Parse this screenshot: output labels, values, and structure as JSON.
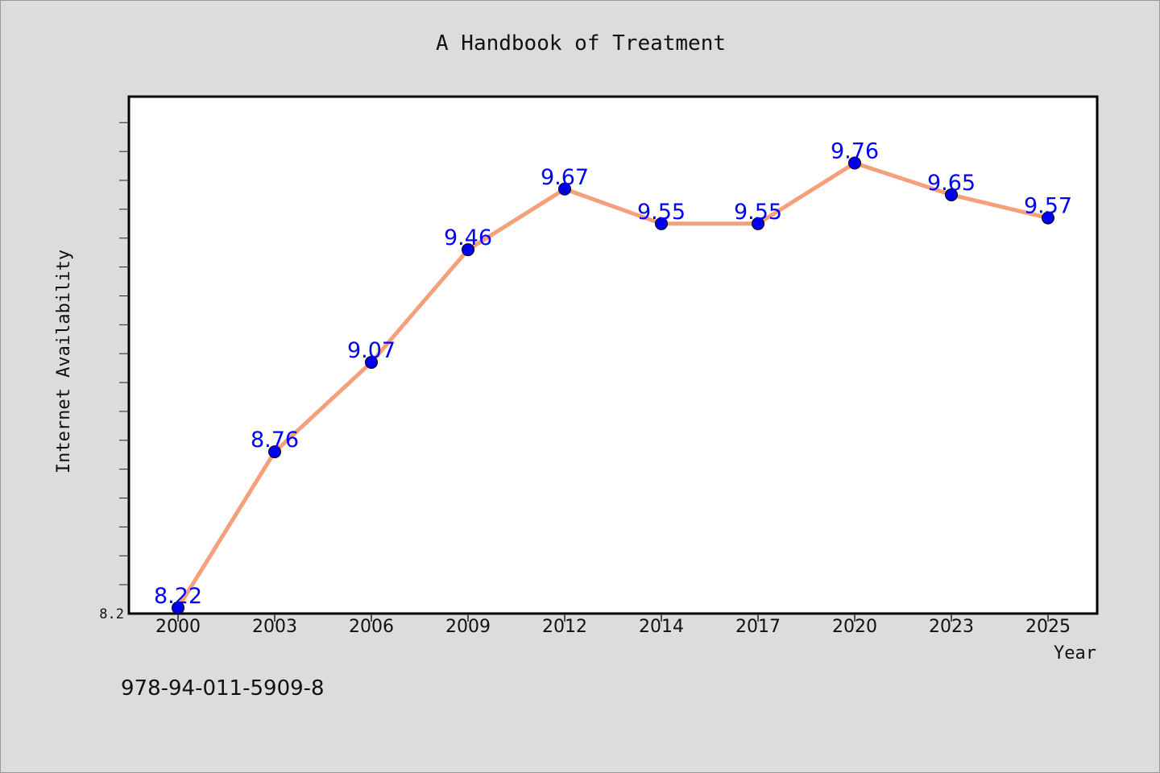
{
  "chart_data": {
    "type": "line",
    "title": "A Handbook of Treatment",
    "xlabel": "Year",
    "ylabel": "Internet Availability",
    "categories": [
      "2000",
      "2003",
      "2006",
      "2009",
      "2012",
      "2014",
      "2017",
      "2020",
      "2023",
      "2025"
    ],
    "series": [
      {
        "values": [
          8.22,
          8.76,
          9.07,
          9.46,
          9.67,
          9.55,
          9.55,
          9.76,
          9.65,
          9.57
        ]
      }
    ],
    "data_labels": [
      "8.22",
      "8.76",
      "9.07",
      "9.46",
      "9.67",
      "9.55",
      "9.55",
      "9.76",
      "9.65",
      "9.57"
    ],
    "ytick_labels": [
      "8.2"
    ],
    "ylim": [
      8.2,
      9.99
    ],
    "y_minor_tick_step": 0.1,
    "grid": false,
    "legend": "none",
    "colors": {
      "line": "#f4a07a",
      "marker": "#0000ee",
      "data_label": "#0000ff",
      "plot_bg": "#ffffff",
      "page_bg": "#dcdcdc"
    }
  },
  "footer_text": "978-94-011-5909-8"
}
